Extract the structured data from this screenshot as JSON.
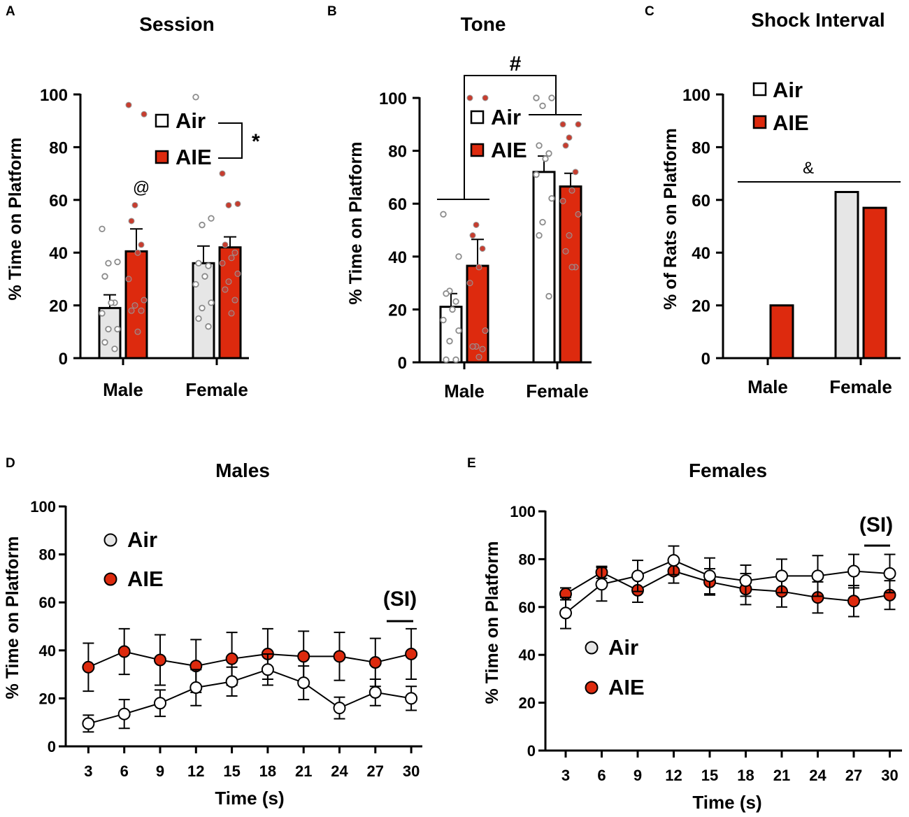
{
  "colors": {
    "air": "#e6e6e6",
    "air_tone": "#ffffff",
    "aie": "#dd2a0e",
    "aie_dot": "#c73d2f",
    "air_dot_stroke": "#8c8c8c"
  },
  "chart_data": [
    {
      "panel": "A",
      "type": "bar",
      "title": "Session",
      "xlabel": "",
      "ylabel": "% Time on Platform",
      "ylim": [
        0,
        100
      ],
      "yticks": [
        "0",
        "20",
        "40",
        "60",
        "80",
        "100"
      ],
      "categories": [
        "Male",
        "Female"
      ],
      "legend": [
        "Air",
        "AIE"
      ],
      "series": [
        {
          "name": "Air",
          "values": [
            19,
            36
          ],
          "sem": [
            5,
            6.5
          ],
          "points": [
            [
              49,
              36.5,
              36,
              31,
              21,
              21,
              17,
              11,
              11,
              6,
              3.5
            ],
            [
              99,
              53,
              50.5,
              36,
              35,
              31,
              28,
              21,
              19,
              15,
              12
            ]
          ]
        },
        {
          "name": "AIE",
          "values": [
            40.5,
            42
          ],
          "sem": [
            8.5,
            4
          ],
          "points": [
            [
              96,
              92.5,
              58,
              52,
              43,
              40,
              30,
              22,
              20,
              18,
              18,
              10
            ],
            [
              70,
              58.5,
              58,
              43,
              40,
              38,
              36,
              32,
              29,
              26,
              22,
              17
            ]
          ]
        }
      ],
      "annotations": [
        "@",
        "*"
      ]
    },
    {
      "panel": "B",
      "type": "bar",
      "title": "Tone",
      "xlabel": "",
      "ylabel": "% Time on Platform",
      "ylim": [
        0,
        100
      ],
      "yticks": [
        "0",
        "20",
        "40",
        "60",
        "80",
        "100"
      ],
      "categories": [
        "Male",
        "Female"
      ],
      "legend": [
        "Air",
        "AIE"
      ],
      "series": [
        {
          "name": "Air",
          "values": [
            21,
            72
          ],
          "sem": [
            5,
            6
          ],
          "points": [
            [
              56,
              40,
              27,
              26,
              23,
              20,
              16,
              12,
              8,
              1,
              1
            ],
            [
              100,
              100,
              97,
              82,
              79,
              77,
              71,
              62,
              53,
              48,
              25
            ]
          ]
        },
        {
          "name": "AIE",
          "values": [
            36.5,
            66.5
          ],
          "sem": [
            10,
            5
          ],
          "points": [
            [
              100,
              100,
              52,
              48,
              43,
              36,
              30,
              12,
              6,
              6,
              5,
              2
            ],
            [
              90,
              90,
              85,
              82,
              72,
              65,
              61,
              56,
              48,
              42,
              36,
              36
            ]
          ]
        }
      ],
      "annotations": [
        "#"
      ]
    },
    {
      "panel": "C",
      "type": "bar",
      "title": "Shock Interval",
      "xlabel": "",
      "ylabel": "% of Rats on Platform",
      "ylim": [
        0,
        100
      ],
      "yticks": [
        "0",
        "20",
        "40",
        "60",
        "80",
        "100"
      ],
      "categories": [
        "Male",
        "Female"
      ],
      "legend": [
        "Air",
        "AIE"
      ],
      "series": [
        {
          "name": "Air",
          "values": [
            0,
            63
          ]
        },
        {
          "name": "AIE",
          "values": [
            20,
            57
          ]
        }
      ],
      "annotations": [
        "&"
      ]
    },
    {
      "panel": "D",
      "type": "line",
      "title": "Males",
      "xlabel": "Time (s)",
      "ylabel": "% Time on Platform",
      "x": [
        3,
        6,
        9,
        12,
        15,
        18,
        21,
        24,
        27,
        30
      ],
      "xticks": [
        "3",
        "6",
        "9",
        "12",
        "15",
        "18",
        "21",
        "24",
        "27",
        "30"
      ],
      "ylim": [
        0,
        100
      ],
      "yticks": [
        "0",
        "20",
        "40",
        "60",
        "80",
        "100"
      ],
      "legend": [
        "Air",
        "AIE"
      ],
      "series": [
        {
          "name": "Air",
          "values": [
            9.5,
            13.5,
            18,
            24.5,
            27,
            32,
            26.5,
            16,
            22.5,
            20
          ],
          "err": [
            3.5,
            6,
            5.5,
            7.5,
            6,
            6.5,
            7,
            4.5,
            5.5,
            5
          ]
        },
        {
          "name": "AIE",
          "values": [
            33,
            39.5,
            36,
            33.5,
            36.5,
            38.5,
            37.5,
            37.5,
            35,
            38.5
          ],
          "err": [
            10,
            9.5,
            10.5,
            11,
            11,
            10.5,
            10.5,
            10,
            10,
            10.5
          ]
        }
      ],
      "annotations": [
        "(SI)"
      ]
    },
    {
      "panel": "E",
      "type": "line",
      "title": "Females",
      "xlabel": "Time (s)",
      "ylabel": "% Time on Platform",
      "x": [
        3,
        6,
        9,
        12,
        15,
        18,
        21,
        24,
        27,
        30
      ],
      "xticks": [
        "3",
        "6",
        "9",
        "12",
        "15",
        "18",
        "21",
        "24",
        "27",
        "30"
      ],
      "ylim": [
        0,
        100
      ],
      "yticks": [
        "0",
        "20",
        "40",
        "60",
        "80",
        "100"
      ],
      "legend": [
        "Air",
        "AIE"
      ],
      "series": [
        {
          "name": "Air",
          "values": [
            57.5,
            69.5,
            73,
            79.5,
            73,
            71,
            73,
            73,
            75,
            74
          ],
          "err": [
            6.5,
            7,
            6.5,
            6,
            7.5,
            6.5,
            7,
            8.5,
            7,
            8
          ]
        },
        {
          "name": "AIE",
          "values": [
            65.5,
            74.5,
            67,
            75,
            70.5,
            67.5,
            66.5,
            64,
            62.5,
            65
          ],
          "err": [
            2.5,
            2.5,
            5,
            5,
            5.5,
            6.5,
            6.5,
            6.5,
            6.5,
            6
          ]
        }
      ],
      "annotations": [
        "(SI)"
      ]
    }
  ]
}
